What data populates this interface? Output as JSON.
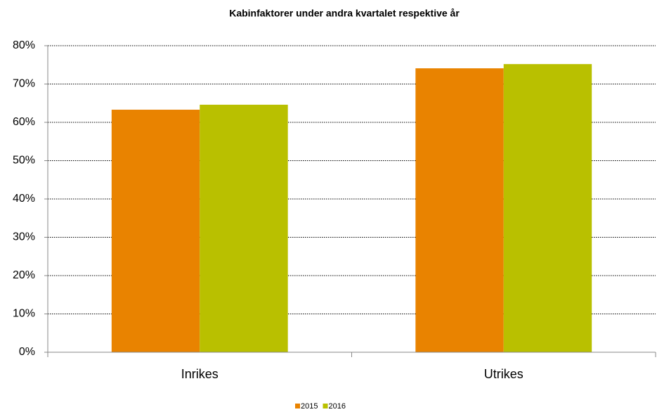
{
  "chart_data": {
    "type": "bar",
    "title": "Kabinfaktorer under andra kvartalet respektive år",
    "categories": [
      "Inrikes",
      "Utrikes"
    ],
    "series": [
      {
        "name": "2015",
        "color": "#e98300",
        "values": [
          63.3,
          74.1
        ]
      },
      {
        "name": "2016",
        "color": "#b9c000",
        "values": [
          64.6,
          75.2
        ]
      }
    ],
    "ylim": [
      0,
      80
    ],
    "yticks": [
      {
        "value": 0,
        "label": "0%"
      },
      {
        "value": 10,
        "label": "10%"
      },
      {
        "value": 20,
        "label": "20%"
      },
      {
        "value": 30,
        "label": "30%"
      },
      {
        "value": 40,
        "label": "40%"
      },
      {
        "value": 50,
        "label": "50%"
      },
      {
        "value": 60,
        "label": "60%"
      },
      {
        "value": 70,
        "label": "70%"
      },
      {
        "value": 80,
        "label": "80%"
      }
    ],
    "grid": true,
    "legend": "bottom"
  }
}
